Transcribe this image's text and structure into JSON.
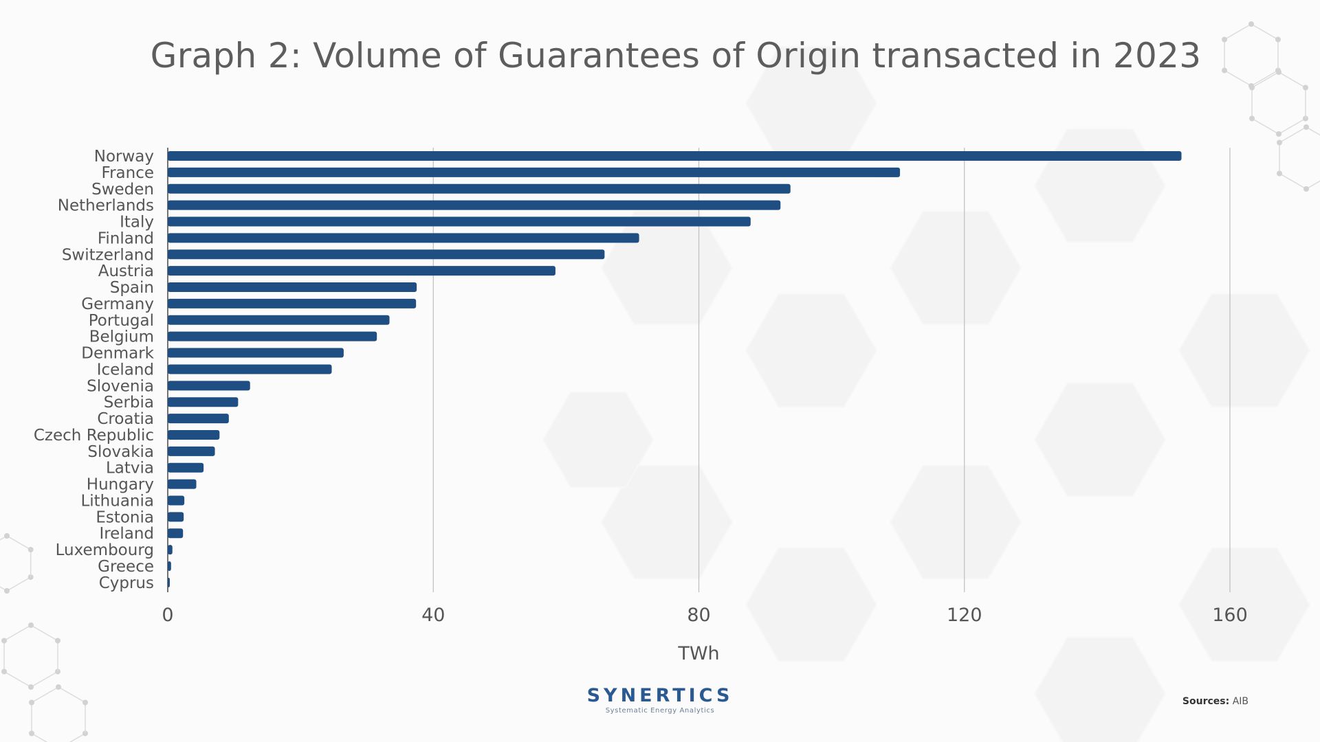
{
  "title": "Graph 2: Volume of Guarantees of Origin transacted in 2023",
  "chart_data": {
    "type": "bar",
    "orientation": "horizontal",
    "categories": [
      "Norway",
      "France",
      "Sweden",
      "Netherlands",
      "Italy",
      "Finland",
      "Switzerland",
      "Austria",
      "Spain",
      "Germany",
      "Portugal",
      "Belgium",
      "Denmark",
      "Iceland",
      "Slovenia",
      "Serbia",
      "Croatia",
      "Czech Republic",
      "Slovakia",
      "Latvia",
      "Hungary",
      "Lithuania",
      "Estonia",
      "Ireland",
      "Luxembourg",
      "Greece",
      "Cyprus"
    ],
    "values": [
      152.7,
      110.3,
      93.8,
      92.3,
      87.8,
      71.0,
      65.8,
      58.4,
      37.5,
      37.4,
      33.4,
      31.5,
      26.5,
      24.7,
      12.4,
      10.6,
      9.2,
      7.8,
      7.1,
      5.4,
      4.3,
      2.5,
      2.4,
      2.3,
      0.7,
      0.5,
      0.3
    ],
    "xlabel": "TWh",
    "ylabel": "",
    "xlim": [
      0,
      160
    ],
    "xticks": [
      0,
      40,
      80,
      120,
      160
    ],
    "grid": true,
    "bar_color": "#1f4e82"
  },
  "logo": {
    "name": "SYNERTICS",
    "tagline": "Systematic Energy Analytics"
  },
  "source": {
    "label": "Sources:",
    "value": "AIB"
  }
}
